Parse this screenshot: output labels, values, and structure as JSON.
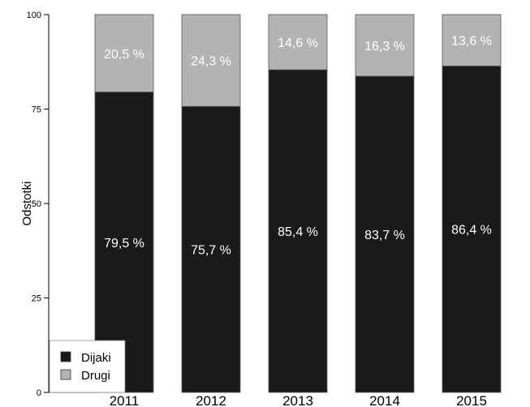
{
  "chart_data": {
    "type": "bar",
    "stacked": true,
    "categories": [
      "2011",
      "2012",
      "2013",
      "2014",
      "2015"
    ],
    "series": [
      {
        "name": "Dijaki",
        "color": "#1a1a1a",
        "values": [
          79.5,
          75.7,
          85.4,
          83.7,
          86.4
        ],
        "labels": [
          "79,5  %",
          "75,7  %",
          "85,4  %",
          "83,7  %",
          "86,4  %"
        ]
      },
      {
        "name": "Drugi",
        "color": "#b3b3b3",
        "values": [
          20.5,
          24.3,
          14.6,
          16.3,
          13.6
        ],
        "labels": [
          "20,5  %",
          "24,3  %",
          "14,6  %",
          "16,3  %",
          "13,6  %"
        ]
      }
    ],
    "ylabel": "Odstotki",
    "ylim": [
      0,
      100
    ],
    "yticks": [
      "0",
      "25",
      "50",
      "75",
      "100"
    ],
    "grid": false,
    "legend_position": "bottom-left"
  }
}
